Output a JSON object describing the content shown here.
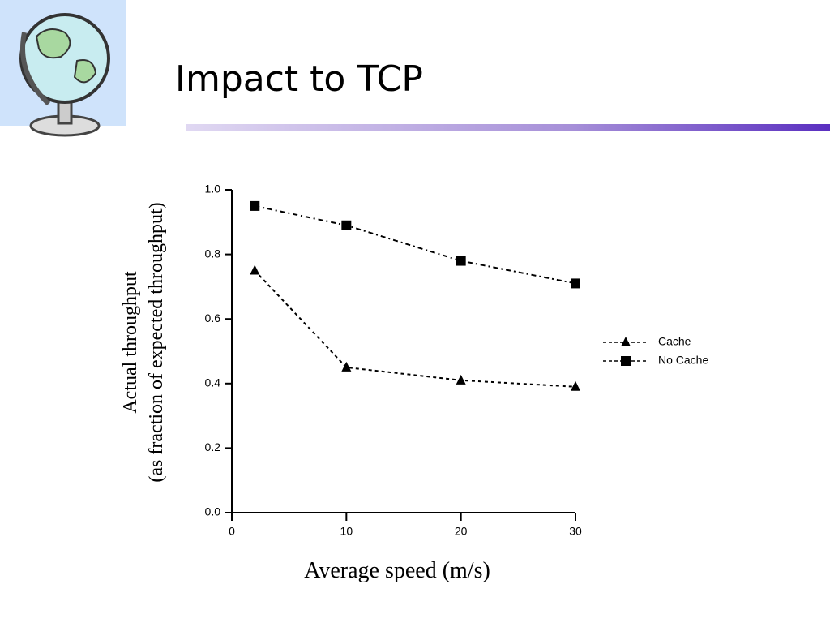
{
  "chart_data": {
    "type": "line",
    "title": "Impact to TCP",
    "xlabel": "Average speed (m/s)",
    "ylabel": [
      "Actual throughput",
      "(as fraction of expected throughput)"
    ],
    "x": [
      2,
      10,
      20,
      30
    ],
    "xlim": [
      0,
      30
    ],
    "xticks": [
      0,
      10,
      20,
      30
    ],
    "ylim": [
      0,
      1
    ],
    "yticks": [
      {
        "value": 0,
        "label": "0.0"
      },
      0.2,
      0.4,
      0.6,
      0.8,
      {
        "value": 1,
        "label": "1.0"
      }
    ],
    "legend": "right",
    "series": [
      {
        "name": "Cache",
        "color": "#000000",
        "marker": "triangle",
        "values": [
          0.75,
          0.45,
          0.41,
          0.39
        ]
      },
      {
        "name": "No Cache",
        "color": "#000000",
        "marker": "square",
        "values": [
          0.95,
          0.89,
          0.78,
          0.71
        ]
      }
    ]
  }
}
